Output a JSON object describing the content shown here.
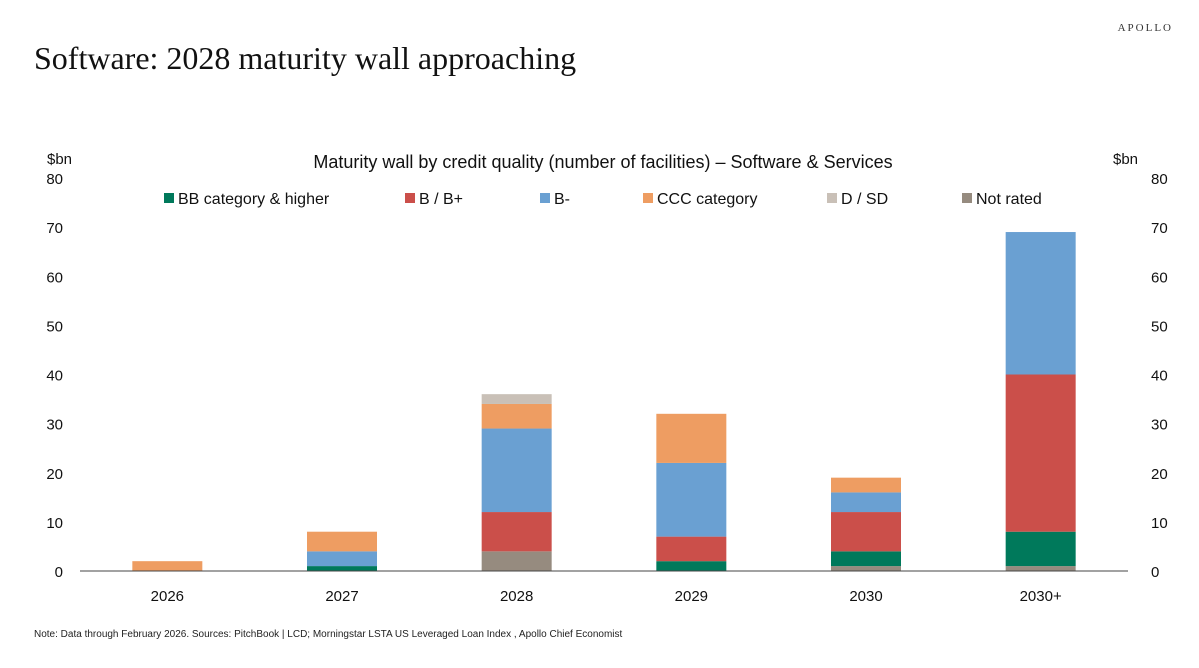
{
  "header": {
    "brand": "APOLLO",
    "title": "Software: 2028 maturity wall approaching"
  },
  "footnote": "Note: Data through February 2026. Sources: PitchBook | LCD; Morningstar LSTA US Leveraged Loan Index , Apollo Chief Economist",
  "chart_data": {
    "type": "bar",
    "stacked": true,
    "title": "Maturity wall by credit quality (number of facilities) – Software & Services",
    "ylabel_left": "$bn",
    "ylabel_right": "$bn",
    "ylim": [
      0,
      80
    ],
    "yticks": [
      0,
      10,
      20,
      30,
      40,
      50,
      60,
      70,
      80
    ],
    "grid": false,
    "legend_position": "top",
    "categories": [
      "2026",
      "2027",
      "2028",
      "2029",
      "2030",
      "2030+"
    ],
    "series": [
      {
        "name": "Not rated",
        "color": "#968B7F",
        "values": [
          0,
          0,
          4,
          0,
          1,
          1
        ]
      },
      {
        "name": "BB category & higher",
        "color": "#00795B",
        "values": [
          0,
          1,
          0,
          2,
          3,
          7
        ]
      },
      {
        "name": "B / B+",
        "color": "#CB4F4A",
        "values": [
          0,
          0,
          8,
          5,
          8,
          32
        ]
      },
      {
        "name": "B-",
        "color": "#6AA0D2",
        "values": [
          0,
          3,
          17,
          15,
          4,
          29
        ]
      },
      {
        "name": "CCC category",
        "color": "#EE9D62",
        "values": [
          2,
          4,
          5,
          10,
          3,
          0
        ]
      },
      {
        "name": "D / SD",
        "color": "#C9C0B7",
        "values": [
          0,
          0,
          2,
          0,
          0,
          0
        ]
      }
    ],
    "legend_order": [
      "BB category & higher",
      "B / B+",
      "B-",
      "CCC category",
      "D / SD",
      "Not rated"
    ]
  }
}
